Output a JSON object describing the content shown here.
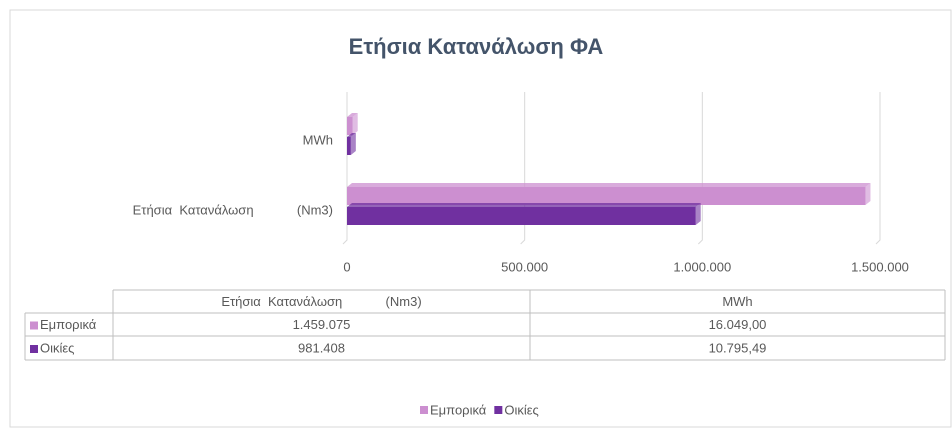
{
  "chart_data": {
    "type": "bar",
    "orientation": "horizontal",
    "title": "Ετήσια Κατανάλωση ΦΑ",
    "categories": [
      "Ετήσια  Κατανάλωση            (Nm3)",
      "MWh"
    ],
    "series": [
      {
        "name": "Εμπορικά",
        "color": "#cc8fd0",
        "values": [
          1459075,
          16049
        ],
        "value_labels": [
          "1.459.075",
          "16.049,00"
        ]
      },
      {
        "name": "Οικίες",
        "color": "#7030a0",
        "values": [
          981408,
          10795.49
        ],
        "value_labels": [
          "981.408",
          "10.795,49"
        ]
      }
    ],
    "xlim": [
      0,
      1500000
    ],
    "xticks": [
      0,
      {
        "value": 500000,
        "label": "500.000"
      },
      {
        "value": 1000000,
        "label": "1.000.000"
      },
      {
        "value": 1500000,
        "label": "1.500.000"
      }
    ],
    "grid": true,
    "legend": "bottom",
    "data_table": true
  }
}
